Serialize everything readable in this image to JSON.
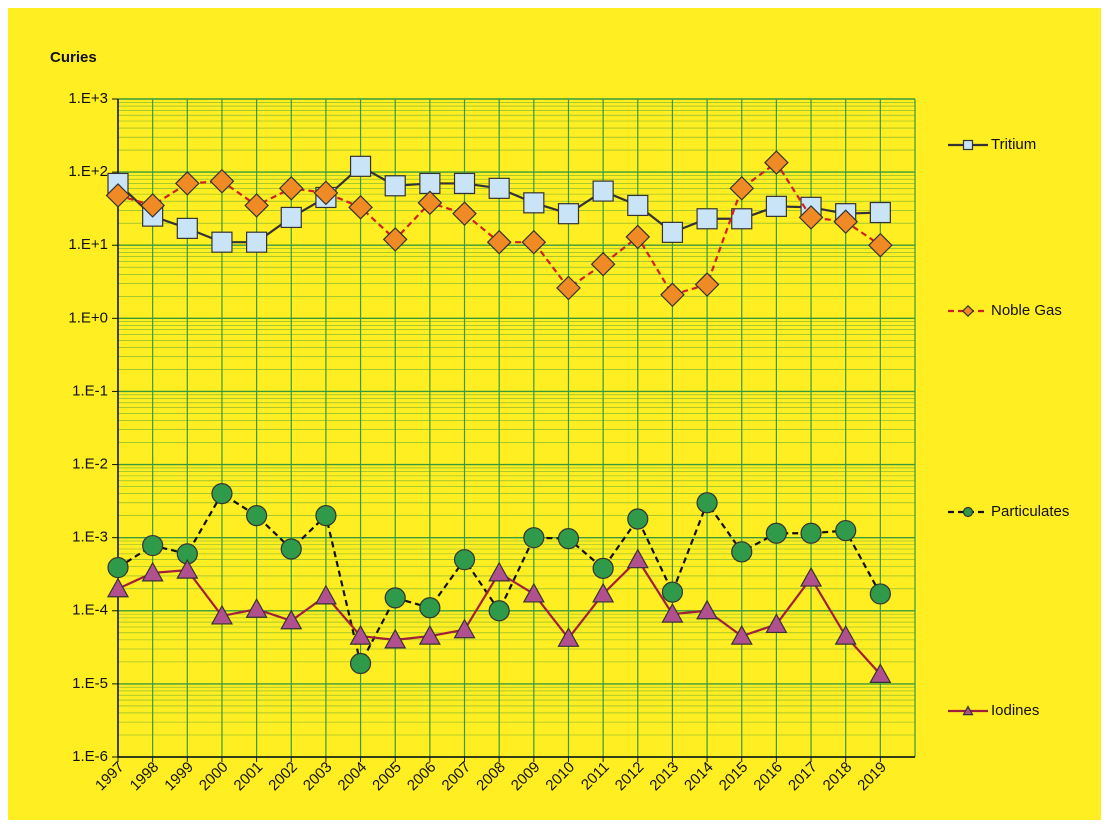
{
  "chart_data": {
    "type": "line",
    "y_label": "Curies",
    "log_y": true,
    "grid": true,
    "minor_grid": true,
    "legend": "right",
    "background": "#ffee22",
    "grid_color": "#3a9a3a",
    "categories": [
      "1997",
      "1998",
      "1999",
      "2000",
      "2001",
      "2002",
      "2003",
      "2004",
      "2005",
      "2006",
      "2007",
      "2008",
      "2009",
      "2010",
      "2011",
      "2012",
      "2013",
      "2014",
      "2015",
      "2016",
      "2017",
      "2018",
      "2019"
    ],
    "ylim": [
      1e-06,
      1000
    ],
    "yticks": [
      {
        "value": 1e-06,
        "label": "1.E-6"
      },
      {
        "value": 1e-05,
        "label": "1.E-5"
      },
      {
        "value": 0.0001,
        "label": "1.E-4"
      },
      {
        "value": 0.001,
        "label": "1.E-3"
      },
      {
        "value": 0.01,
        "label": "1.E-2"
      },
      {
        "value": 0.1,
        "label": "1.E-1"
      },
      {
        "value": 1,
        "label": "1.E+0"
      },
      {
        "value": 10,
        "label": "1.E+1"
      },
      {
        "value": 100,
        "label": "1.E+2"
      },
      {
        "value": 1000,
        "label": "1.E+3"
      }
    ],
    "series": [
      {
        "name": "Tritium",
        "color": "#c8e4f6",
        "line_color": "#333333",
        "marker": "square",
        "dashed": false,
        "values": [
          70,
          25,
          17,
          11,
          11,
          24,
          45,
          120,
          65,
          70,
          70,
          60,
          38,
          27,
          55,
          35,
          15,
          23,
          23,
          34,
          33,
          27,
          28
        ]
      },
      {
        "name": "Noble Gas",
        "color": "#f08a24",
        "line_color": "#d02020",
        "marker": "diamond",
        "dashed": true,
        "values": [
          48,
          35,
          70,
          75,
          35,
          60,
          52,
          33,
          12,
          38,
          27,
          11,
          11,
          2.6,
          5.5,
          13,
          2.1,
          2.9,
          60,
          135,
          24,
          21,
          10
        ]
      },
      {
        "name": "Particulates",
        "color": "#2f9a4a",
        "line_color": "#111111",
        "marker": "circle",
        "dashed": true,
        "values": [
          0.00039,
          0.00078,
          0.0006,
          0.004,
          0.002,
          0.0007,
          0.002,
          1.9e-05,
          0.00015,
          0.00011,
          0.0005,
          0.0001,
          0.001,
          0.00097,
          0.00038,
          0.0018,
          0.00018,
          0.003,
          0.00064,
          0.00115,
          0.00115,
          0.00125,
          0.00017
        ]
      },
      {
        "name": "Iodines",
        "color": "#b0508e",
        "line_color": "#a0203c",
        "marker": "triangle",
        "dashed": false,
        "values": [
          0.0002,
          0.00033,
          0.00036,
          8.5e-05,
          0.000105,
          7.3e-05,
          0.00016,
          4.5e-05,
          4e-05,
          4.5e-05,
          5.5e-05,
          0.00033,
          0.00017,
          4.2e-05,
          0.00017,
          0.0005,
          9e-05,
          0.0001,
          4.5e-05,
          6.5e-05,
          0.00028,
          4.5e-05,
          1.35e-05
        ]
      }
    ]
  }
}
